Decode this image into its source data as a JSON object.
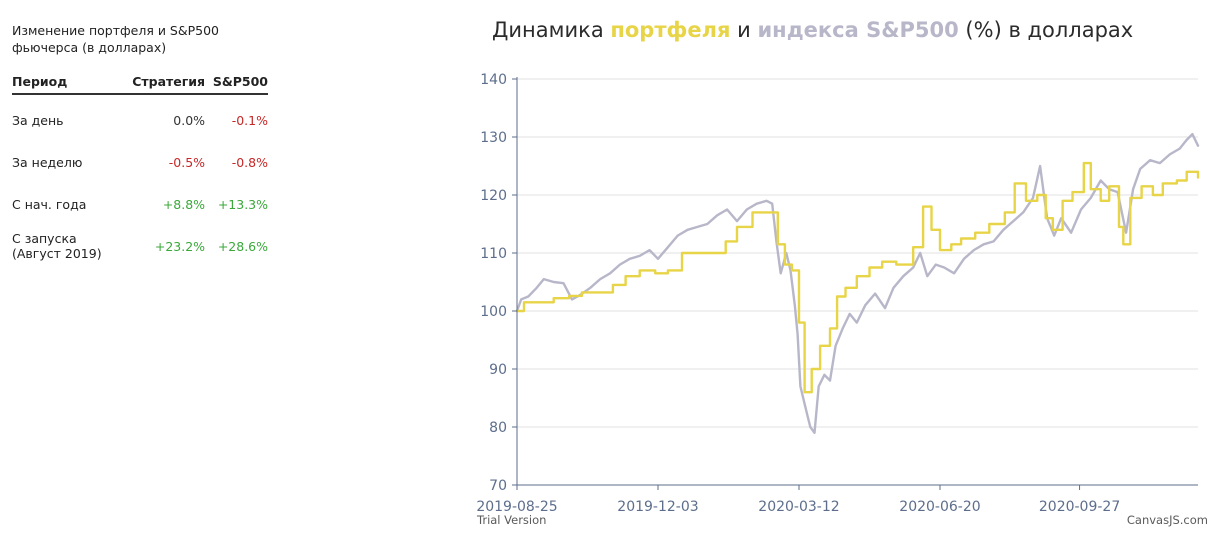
{
  "sidebar": {
    "title": "Изменение портфеля и S&P500 фьючерса (в долларах)",
    "headers": {
      "period": "Период",
      "strategy": "Стратегия",
      "sp500": "S&P500"
    },
    "rows": [
      {
        "period": "За день",
        "strategy": "0.0%",
        "sp500": "-0.1%",
        "strategy_status": "neutral",
        "sp500_status": "neg"
      },
      {
        "period": "За неделю",
        "strategy": "-0.5%",
        "sp500": "-0.8%",
        "strategy_status": "neg",
        "sp500_status": "neg"
      },
      {
        "period": "С нач. года",
        "strategy": "+8.8%",
        "sp500": "+13.3%",
        "strategy_status": "pos",
        "sp500_status": "pos"
      },
      {
        "period": "С запуска (Август 2019)",
        "strategy": "+23.2%",
        "sp500": "+28.6%",
        "strategy_status": "pos",
        "sp500_status": "pos"
      }
    ]
  },
  "chart_title": {
    "prefix": "Динамика ",
    "portfolio_word": "портфеля",
    "middle": " и ",
    "index_word": "индекса S&P500",
    "suffix": " (%) в долларах"
  },
  "colors": {
    "portfolio": "#e8d447",
    "index": "#b7b7c9",
    "axis": "#5d6e8c",
    "grid": "#e2e2e2"
  },
  "credits": {
    "left": "Trial Version",
    "right": "CanvasJS.com"
  },
  "chart_data": {
    "type": "line",
    "title": "Динамика портфеля и индекса S&P500 (%) в долларах",
    "xlabel": "",
    "ylabel": "",
    "ylim": [
      70,
      140
    ],
    "yticks": [
      70,
      80,
      90,
      100,
      110,
      120,
      130,
      140
    ],
    "xlim": [
      "2019-08-25",
      "2020-12-20"
    ],
    "xticks": [
      "2019-08-25",
      "2019-12-03",
      "2020-03-12",
      "2020-06-20",
      "2020-09-27"
    ],
    "grid": "horizontal",
    "series": [
      {
        "name": "портфеля",
        "color": "#e8d447",
        "step": true,
        "points": [
          [
            "2019-08-25",
            100.0
          ],
          [
            "2019-08-30",
            101.5
          ],
          [
            "2019-09-10",
            101.5
          ],
          [
            "2019-09-20",
            102.2
          ],
          [
            "2019-10-01",
            102.6
          ],
          [
            "2019-10-10",
            103.2
          ],
          [
            "2019-10-25",
            103.2
          ],
          [
            "2019-11-01",
            104.5
          ],
          [
            "2019-11-10",
            106.0
          ],
          [
            "2019-11-20",
            107.0
          ],
          [
            "2019-12-01",
            106.5
          ],
          [
            "2019-12-10",
            107.0
          ],
          [
            "2019-12-20",
            110.0
          ],
          [
            "2020-01-10",
            110.0
          ],
          [
            "2020-01-20",
            112.0
          ],
          [
            "2020-01-28",
            114.5
          ],
          [
            "2020-02-08",
            117.0
          ],
          [
            "2020-02-20",
            117.0
          ],
          [
            "2020-02-26",
            111.5
          ],
          [
            "2020-03-02",
            108.0
          ],
          [
            "2020-03-07",
            107.0
          ],
          [
            "2020-03-12",
            98.0
          ],
          [
            "2020-03-16",
            86.0
          ],
          [
            "2020-03-21",
            90.0
          ],
          [
            "2020-03-27",
            94.0
          ],
          [
            "2020-04-03",
            97.0
          ],
          [
            "2020-04-08",
            102.5
          ],
          [
            "2020-04-14",
            104.0
          ],
          [
            "2020-04-22",
            106.0
          ],
          [
            "2020-05-01",
            107.5
          ],
          [
            "2020-05-10",
            108.5
          ],
          [
            "2020-05-20",
            108.0
          ],
          [
            "2020-06-01",
            111.0
          ],
          [
            "2020-06-08",
            118.0
          ],
          [
            "2020-06-14",
            114.0
          ],
          [
            "2020-06-20",
            110.5
          ],
          [
            "2020-06-28",
            111.5
          ],
          [
            "2020-07-05",
            112.5
          ],
          [
            "2020-07-15",
            113.5
          ],
          [
            "2020-07-25",
            115.0
          ],
          [
            "2020-08-05",
            117.0
          ],
          [
            "2020-08-12",
            122.0
          ],
          [
            "2020-08-20",
            119.0
          ],
          [
            "2020-08-28",
            120.0
          ],
          [
            "2020-09-03",
            116.0
          ],
          [
            "2020-09-08",
            114.0
          ],
          [
            "2020-09-15",
            119.0
          ],
          [
            "2020-09-22",
            120.5
          ],
          [
            "2020-09-30",
            125.5
          ],
          [
            "2020-10-05",
            121.0
          ],
          [
            "2020-10-12",
            119.0
          ],
          [
            "2020-10-18",
            121.5
          ],
          [
            "2020-10-25",
            114.5
          ],
          [
            "2020-10-28",
            111.5
          ],
          [
            "2020-11-02",
            119.5
          ],
          [
            "2020-11-10",
            121.5
          ],
          [
            "2020-11-18",
            120.0
          ],
          [
            "2020-11-25",
            122.0
          ],
          [
            "2020-12-05",
            122.5
          ],
          [
            "2020-12-12",
            124.0
          ],
          [
            "2020-12-20",
            123.0
          ]
        ]
      },
      {
        "name": "индекса S&P500",
        "color": "#b7b7c9",
        "step": false,
        "points": [
          [
            "2019-08-25",
            100.0
          ],
          [
            "2019-08-28",
            102.0
          ],
          [
            "2019-09-02",
            102.5
          ],
          [
            "2019-09-08",
            104.0
          ],
          [
            "2019-09-13",
            105.5
          ],
          [
            "2019-09-20",
            105.0
          ],
          [
            "2019-09-27",
            104.8
          ],
          [
            "2019-10-03",
            102.0
          ],
          [
            "2019-10-09",
            102.8
          ],
          [
            "2019-10-16",
            104.0
          ],
          [
            "2019-10-23",
            105.5
          ],
          [
            "2019-10-30",
            106.5
          ],
          [
            "2019-11-06",
            108.0
          ],
          [
            "2019-11-13",
            109.0
          ],
          [
            "2019-11-20",
            109.5
          ],
          [
            "2019-11-27",
            110.5
          ],
          [
            "2019-12-03",
            109.0
          ],
          [
            "2019-12-10",
            111.0
          ],
          [
            "2019-12-17",
            113.0
          ],
          [
            "2019-12-24",
            114.0
          ],
          [
            "2019-12-31",
            114.5
          ],
          [
            "2020-01-07",
            115.0
          ],
          [
            "2020-01-14",
            116.5
          ],
          [
            "2020-01-21",
            117.5
          ],
          [
            "2020-01-28",
            115.5
          ],
          [
            "2020-02-04",
            117.5
          ],
          [
            "2020-02-11",
            118.5
          ],
          [
            "2020-02-18",
            119.0
          ],
          [
            "2020-02-22",
            118.5
          ],
          [
            "2020-02-25",
            112.0
          ],
          [
            "2020-02-28",
            106.5
          ],
          [
            "2020-03-03",
            110.0
          ],
          [
            "2020-03-06",
            107.0
          ],
          [
            "2020-03-09",
            101.0
          ],
          [
            "2020-03-11",
            96.0
          ],
          [
            "2020-03-13",
            87.0
          ],
          [
            "2020-03-16",
            84.0
          ],
          [
            "2020-03-18",
            82.0
          ],
          [
            "2020-03-20",
            80.0
          ],
          [
            "2020-03-23",
            79.0
          ],
          [
            "2020-03-26",
            87.0
          ],
          [
            "2020-03-30",
            89.0
          ],
          [
            "2020-04-03",
            88.0
          ],
          [
            "2020-04-07",
            94.0
          ],
          [
            "2020-04-12",
            97.0
          ],
          [
            "2020-04-17",
            99.5
          ],
          [
            "2020-04-22",
            98.0
          ],
          [
            "2020-04-28",
            101.0
          ],
          [
            "2020-05-05",
            103.0
          ],
          [
            "2020-05-12",
            100.5
          ],
          [
            "2020-05-18",
            104.0
          ],
          [
            "2020-05-25",
            106.0
          ],
          [
            "2020-06-01",
            107.5
          ],
          [
            "2020-06-06",
            110.0
          ],
          [
            "2020-06-11",
            106.0
          ],
          [
            "2020-06-17",
            108.0
          ],
          [
            "2020-06-23",
            107.5
          ],
          [
            "2020-06-30",
            106.5
          ],
          [
            "2020-07-07",
            109.0
          ],
          [
            "2020-07-14",
            110.5
          ],
          [
            "2020-07-21",
            111.5
          ],
          [
            "2020-07-28",
            112.0
          ],
          [
            "2020-08-04",
            114.0
          ],
          [
            "2020-08-11",
            115.5
          ],
          [
            "2020-08-18",
            117.0
          ],
          [
            "2020-08-25",
            119.5
          ],
          [
            "2020-08-30",
            125.0
          ],
          [
            "2020-09-04",
            116.0
          ],
          [
            "2020-09-09",
            113.0
          ],
          [
            "2020-09-14",
            116.0
          ],
          [
            "2020-09-21",
            113.5
          ],
          [
            "2020-09-28",
            117.5
          ],
          [
            "2020-10-05",
            119.5
          ],
          [
            "2020-10-12",
            122.5
          ],
          [
            "2020-10-18",
            121.0
          ],
          [
            "2020-10-24",
            120.5
          ],
          [
            "2020-10-30",
            113.5
          ],
          [
            "2020-11-04",
            121.0
          ],
          [
            "2020-11-09",
            124.5
          ],
          [
            "2020-11-16",
            126.0
          ],
          [
            "2020-11-23",
            125.5
          ],
          [
            "2020-11-30",
            127.0
          ],
          [
            "2020-12-07",
            128.0
          ],
          [
            "2020-12-12",
            129.5
          ],
          [
            "2020-12-16",
            130.5
          ],
          [
            "2020-12-20",
            128.5
          ]
        ]
      }
    ]
  }
}
